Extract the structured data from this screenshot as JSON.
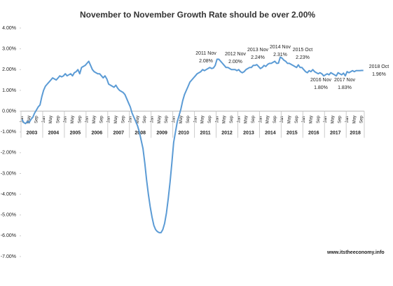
{
  "chart_data": {
    "type": "line",
    "title": "November to November Growth Rate should be over 2.00%",
    "source": "www.itstheeconomy.info",
    "categories": [
      "Jan",
      null,
      null,
      null,
      "May",
      null,
      null,
      null,
      "Sep",
      null,
      null,
      null,
      "Jan",
      null,
      null,
      null,
      "May",
      null,
      null,
      null,
      "Sep",
      null,
      null,
      null,
      "Jan",
      null,
      null,
      null,
      "May",
      null,
      null,
      null,
      "Sep",
      null,
      null,
      null,
      "Jan",
      null,
      null,
      null,
      "May",
      null,
      null,
      null,
      "Sep",
      null,
      null,
      null,
      "Jan",
      null,
      null,
      null,
      "May",
      null,
      null,
      null,
      "Sep",
      null,
      null,
      null,
      "Jan",
      null,
      null,
      null,
      "May",
      null,
      null,
      null,
      "Sep",
      null,
      null,
      null,
      "Jan",
      null,
      null,
      null,
      "May",
      null,
      null,
      null,
      "Sep",
      null,
      null,
      null,
      "Jan",
      null,
      null,
      null,
      "May",
      null,
      null,
      null,
      "Sep",
      null,
      null,
      null,
      "Jan",
      null,
      null,
      null,
      "May",
      null,
      null,
      null,
      "Sep",
      null,
      null,
      null,
      "Jan",
      null,
      null,
      null,
      "May",
      null,
      null,
      null,
      "Sep",
      null,
      null,
      null,
      "Jan",
      null,
      null,
      null,
      "May",
      null,
      null,
      null,
      "Sep",
      null,
      null,
      null,
      "Jan",
      null,
      null,
      null,
      "May",
      null,
      null,
      null,
      "Sep",
      null,
      null,
      null,
      "Jan",
      null,
      null,
      null,
      "May",
      null,
      null,
      null,
      "Sep",
      null,
      null,
      null,
      "Jan",
      null,
      null,
      null,
      "May",
      null,
      null,
      null,
      "Sep",
      null,
      null,
      null,
      "Jan",
      null,
      null,
      null,
      "May",
      null,
      null,
      null,
      "Sep",
      null,
      null,
      null,
      "Jan",
      null,
      null,
      null,
      "May",
      null,
      null,
      null,
      "Sep",
      null
    ],
    "year_groups": [
      "2003",
      "2004",
      "2005",
      "2006",
      "2007",
      "2008",
      "2009",
      "2010",
      "2011",
      "2012",
      "2013",
      "2014",
      "2015",
      "2016",
      "2017",
      "2018"
    ],
    "series": [
      {
        "color": "#5b9bd5",
        "values": [
          -0.4,
          -0.55,
          -0.6,
          -0.5,
          -0.55,
          -0.4,
          -0.3,
          -0.1,
          0.05,
          0.2,
          0.3,
          0.7,
          1.0,
          1.2,
          1.3,
          1.4,
          1.5,
          1.6,
          1.55,
          1.5,
          1.6,
          1.7,
          1.65,
          1.7,
          1.8,
          1.7,
          1.75,
          1.8,
          1.7,
          1.85,
          1.9,
          2.0,
          1.8,
          2.1,
          2.15,
          2.2,
          2.3,
          2.4,
          2.2,
          2.0,
          1.9,
          1.85,
          1.8,
          1.8,
          1.7,
          1.6,
          1.7,
          1.55,
          1.3,
          1.25,
          1.2,
          1.15,
          1.25,
          1.1,
          1.0,
          0.95,
          0.9,
          0.8,
          0.6,
          0.4,
          0.2,
          -0.1,
          -0.3,
          -0.5,
          -0.7,
          -1.0,
          -1.4,
          -1.8,
          -2.5,
          -3.3,
          -4.0,
          -4.6,
          -5.1,
          -5.5,
          -5.7,
          -5.8,
          -5.85,
          -5.85,
          -5.7,
          -5.4,
          -4.9,
          -4.2,
          -3.4,
          -2.5,
          -1.5,
          -1.0,
          -0.5,
          -0.2,
          0.1,
          0.5,
          0.8,
          1.0,
          1.2,
          1.4,
          1.5,
          1.6,
          1.7,
          1.8,
          1.85,
          1.9,
          2.0,
          1.95,
          2.0,
          2.05,
          2.1,
          2.05,
          2.08,
          2.2,
          2.5,
          2.5,
          2.4,
          2.3,
          2.2,
          2.1,
          2.1,
          2.05,
          2.0,
          2.0,
          2.0,
          1.95,
          2.0,
          1.9,
          1.85,
          1.9,
          2.0,
          2.05,
          2.1,
          2.1,
          2.2,
          2.2,
          2.24,
          2.15,
          2.05,
          2.1,
          2.2,
          2.15,
          2.25,
          2.3,
          2.3,
          2.35,
          2.4,
          2.3,
          2.31,
          2.6,
          2.55,
          2.45,
          2.4,
          2.3,
          2.3,
          2.25,
          2.2,
          2.15,
          2.1,
          2.23,
          2.1,
          2.1,
          2.0,
          1.9,
          1.85,
          1.95,
          1.9,
          2.0,
          1.9,
          1.85,
          1.8,
          1.85,
          1.8,
          1.7,
          1.75,
          1.8,
          1.75,
          1.85,
          1.8,
          1.75,
          1.7,
          1.85,
          1.8,
          1.75,
          1.83,
          1.7,
          1.9,
          1.85,
          1.9,
          1.95,
          1.9,
          1.95,
          1.95,
          1.95,
          1.96,
          1.96
        ]
      }
    ],
    "ylim": [
      -7,
      4
    ],
    "yticks": [
      {
        "value": 4,
        "label": "4.00%"
      },
      {
        "value": 3,
        "label": "3.00%"
      },
      {
        "value": 2,
        "label": "2.00%"
      },
      {
        "value": 1,
        "label": "1.00%"
      },
      {
        "value": 0,
        "label": "0.00%"
      },
      {
        "value": -1,
        "label": "-1.00%"
      },
      {
        "value": -2,
        "label": "-2.00%"
      },
      {
        "value": -3,
        "label": "-3.00%"
      },
      {
        "value": -4,
        "label": "-4.00%"
      },
      {
        "value": -5,
        "label": "-5.00%"
      },
      {
        "value": -6,
        "label": "-6.00%"
      },
      {
        "value": -7,
        "label": "-7.00%"
      }
    ],
    "grid": false,
    "annotations": [
      {
        "date": "2011 Nov",
        "value": "2.08%"
      },
      {
        "date": "2012 Nov",
        "value": "2.00%"
      },
      {
        "date": "2013 Nov",
        "value": "2.24%"
      },
      {
        "date": "2014 Nov",
        "value": "2.31%"
      },
      {
        "date": "2015 Oct",
        "value": "2.23%"
      },
      {
        "date": "2016 Nov",
        "value": "1.80%"
      },
      {
        "date": "2017 Nov",
        "value": "1.83%"
      },
      {
        "date": "2018 Oct",
        "value": "1.96%"
      }
    ]
  }
}
